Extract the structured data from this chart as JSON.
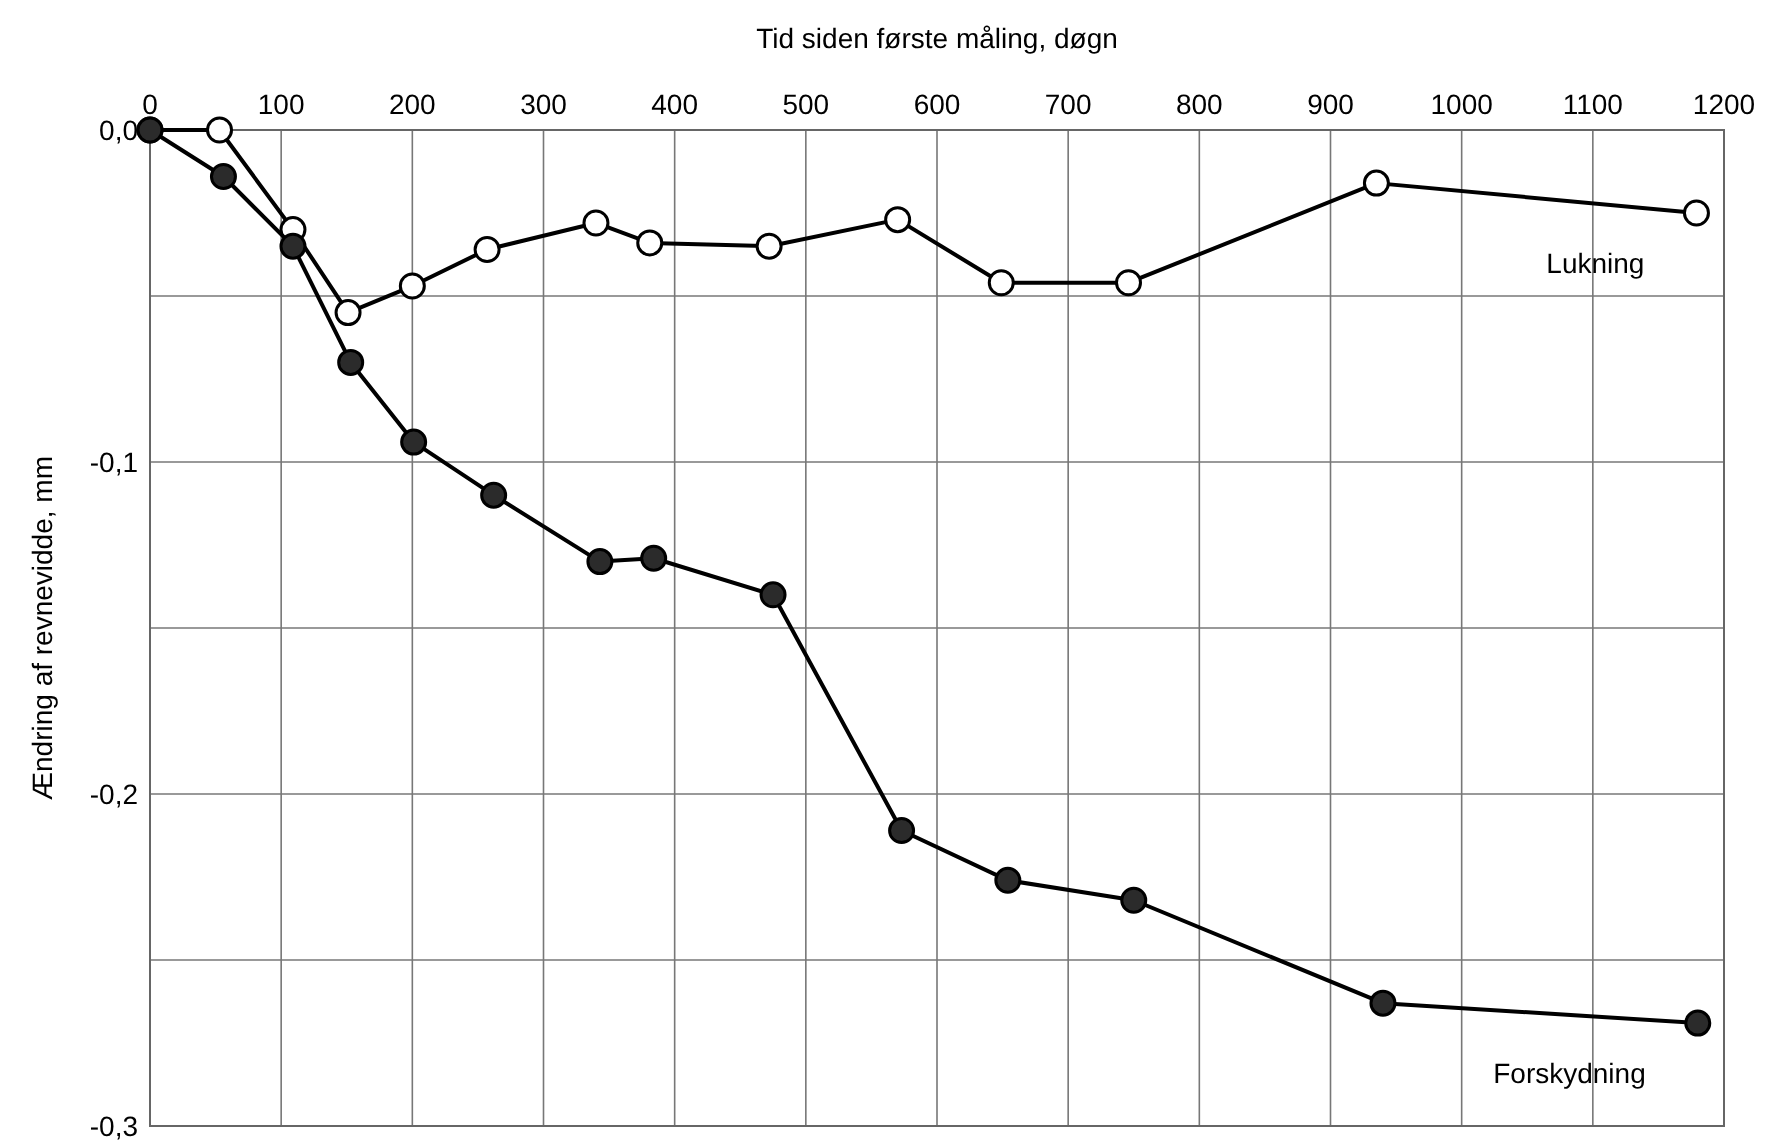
{
  "chart_data": {
    "type": "line",
    "xlabel": "Tid siden første måling, døgn",
    "ylabel": "Ændring af revnevidde, mm",
    "xlim": [
      0,
      1200
    ],
    "xticks": [
      0,
      100,
      200,
      300,
      400,
      500,
      600,
      700,
      800,
      900,
      1000,
      1100,
      1200
    ],
    "ylim": [
      -0.3,
      0
    ],
    "yticks": [
      {
        "value": 0,
        "label": "0,0"
      },
      {
        "value": -0.05,
        "label": null
      },
      {
        "value": -0.1,
        "label": "-0,1"
      },
      {
        "value": -0.15,
        "label": null
      },
      {
        "value": -0.2,
        "label": "-0,2"
      },
      {
        "value": -0.25,
        "label": null
      },
      {
        "value": -0.3,
        "label": "-0,3"
      }
    ],
    "grid": true,
    "marker": "circle",
    "line_style": "solid",
    "series": [
      {
        "name": "Lukning",
        "color": "#ffffff",
        "x": [
          0,
          53,
          109,
          151,
          200,
          257,
          340,
          381,
          472,
          570,
          649,
          746,
          935,
          1179
        ],
        "values": [
          0,
          0,
          -0.03,
          -0.055,
          -0.047,
          -0.036,
          -0.028,
          -0.034,
          -0.035,
          -0.027,
          -0.046,
          -0.046,
          -0.016,
          -0.025
        ]
      },
      {
        "name": "Forskydning",
        "color": "#2b2b2b",
        "x": [
          0,
          56,
          109,
          153,
          201,
          262,
          343,
          384,
          475,
          573,
          654,
          750,
          940,
          1180
        ],
        "values": [
          0,
          -0.014,
          -0.035,
          -0.07,
          -0.094,
          -0.11,
          -0.13,
          -0.129,
          -0.14,
          -0.211,
          -0.226,
          -0.232,
          -0.263,
          -0.269
        ]
      }
    ]
  }
}
